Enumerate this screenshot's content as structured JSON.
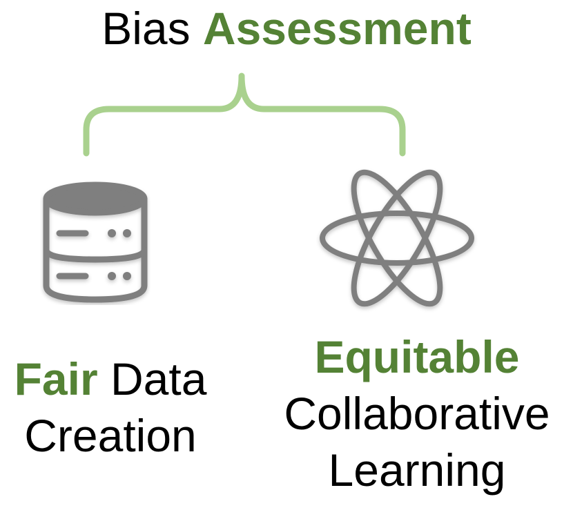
{
  "title": {
    "prefix": "Bias",
    "highlight": "Assessment"
  },
  "left_node": {
    "icon": "database-icon",
    "highlight": "Fair",
    "line1_rest": "Data",
    "line2": "Creation"
  },
  "right_node": {
    "icon": "atom-icon",
    "highlight": "Equitable",
    "line2": "Collaborative",
    "line3": "Learning"
  },
  "colors": {
    "accent_text": "#548235",
    "brace": "#a9d18e",
    "icon": "#7f7f7f",
    "text": "#000000"
  }
}
